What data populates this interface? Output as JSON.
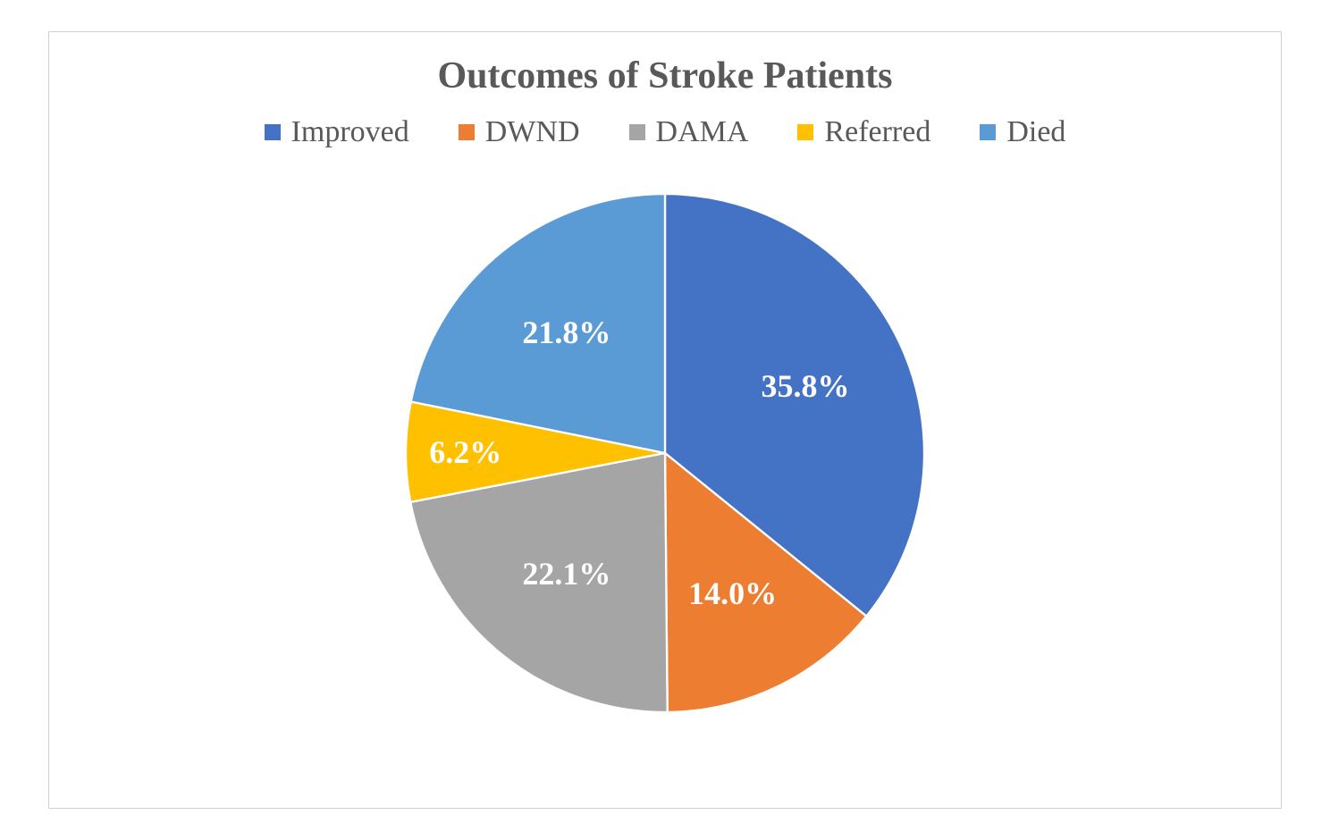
{
  "chart": {
    "type": "pie",
    "title": "Outcomes of Stroke Patients",
    "title_fontsize": 42,
    "title_color": "#595959",
    "background_color": "#ffffff",
    "border_color": "#d0d0d0",
    "legend_fontsize": 34,
    "legend_text_color": "#595959",
    "slice_border_color": "#ffffff",
    "slice_border_width": 2,
    "label_color": "#ffffff",
    "label_fontsize": 36,
    "label_fontweight": "bold",
    "slices": [
      {
        "label": "Improved",
        "value": 35.8,
        "display": "35.8%",
        "color": "#4472c4"
      },
      {
        "label": "DWND",
        "value": 14.0,
        "display": "14.0%",
        "color": "#ed7d31"
      },
      {
        "label": "DAMA",
        "value": 22.1,
        "display": "22.1%",
        "color": "#a5a5a5"
      },
      {
        "label": "Referred",
        "value": 6.2,
        "display": "6.2%",
        "color": "#ffc000"
      },
      {
        "label": "Died",
        "value": 21.8,
        "display": "21.8%",
        "color": "#5b9bd5"
      }
    ]
  }
}
